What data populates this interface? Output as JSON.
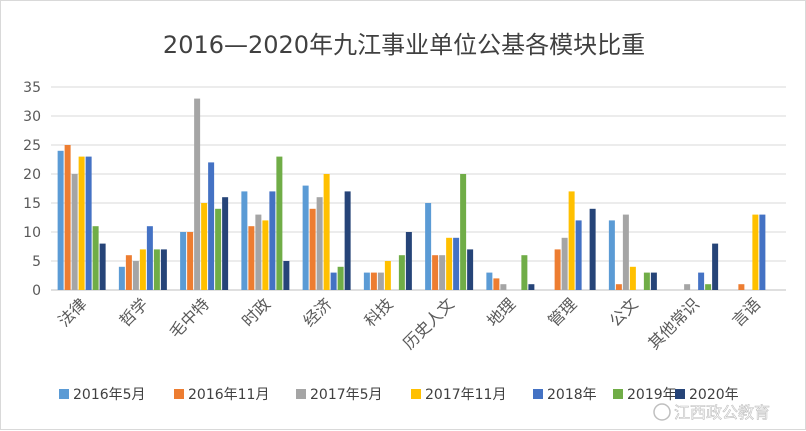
{
  "chart_data": {
    "type": "bar",
    "title": "2016—2020年九江事业单位公基各模块比重",
    "xlabel": "",
    "ylabel": "",
    "ylim": [
      0,
      35
    ],
    "yticks": [
      0,
      5,
      10,
      15,
      20,
      25,
      30,
      35
    ],
    "grid": true,
    "legend_position": "bottom",
    "categories": [
      "法律",
      "哲学",
      "毛中特",
      "时政",
      "经济",
      "科技",
      "历史人文",
      "地理",
      "管理",
      "公文",
      "其他常识",
      "言语"
    ],
    "series": [
      {
        "name": "2016年5月",
        "color": "#5b9bd5",
        "values": [
          24,
          4,
          10,
          17,
          18,
          3,
          15,
          3,
          0,
          12,
          0,
          0
        ]
      },
      {
        "name": "2016年11月",
        "color": "#ed7d31",
        "values": [
          25,
          6,
          10,
          11,
          14,
          3,
          6,
          2,
          7,
          1,
          0,
          1
        ]
      },
      {
        "name": "2017年5月",
        "color": "#a5a5a5",
        "values": [
          20,
          5,
          33,
          13,
          16,
          3,
          6,
          1,
          9,
          13,
          1,
          0
        ]
      },
      {
        "name": "2017年11月",
        "color": "#ffc000",
        "values": [
          23,
          7,
          15,
          12,
          20,
          5,
          9,
          0,
          17,
          4,
          0,
          13
        ]
      },
      {
        "name": "2018年",
        "color": "#4472c4",
        "values": [
          23,
          11,
          22,
          17,
          3,
          0,
          9,
          0,
          12,
          0,
          3,
          13
        ]
      },
      {
        "name": "2019年",
        "color": "#70ad47",
        "values": [
          11,
          7,
          14,
          23,
          4,
          6,
          20,
          6,
          0,
          3,
          1,
          0
        ]
      },
      {
        "name": "2020年",
        "color": "#264478",
        "values": [
          8,
          7,
          16,
          5,
          17,
          10,
          7,
          1,
          14,
          3,
          8,
          0
        ]
      }
    ]
  },
  "watermark": {
    "text": "江西政公教育"
  }
}
